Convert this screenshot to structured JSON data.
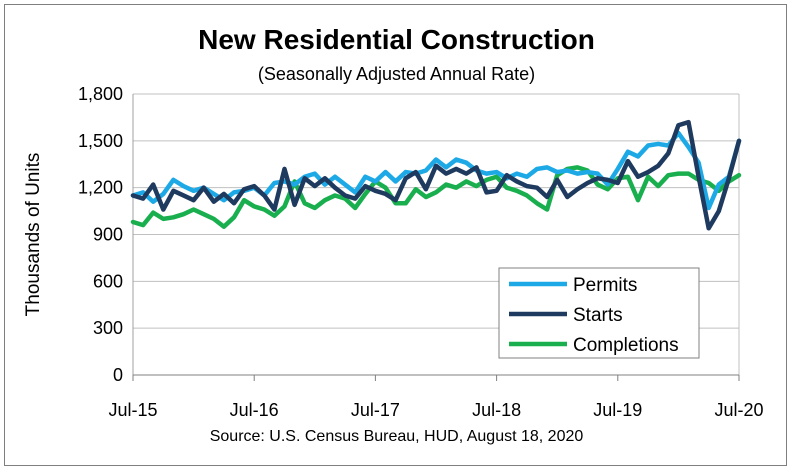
{
  "chart_data": {
    "type": "line",
    "title": "New Residential Construction",
    "subtitle": "(Seasonally Adjusted Annual Rate)",
    "ylabel": "Thousands of Units",
    "xlabel": "",
    "source": "Source:  U.S. Census Bureau, HUD, August 18, 2020",
    "ylim": [
      0,
      1800
    ],
    "yticks": [
      0,
      300,
      600,
      900,
      1200,
      1500,
      1800
    ],
    "ytick_labels": [
      "0",
      "300",
      "600",
      "900",
      "1,200",
      "1,500",
      "1,800"
    ],
    "grid": true,
    "legend_position": "bottom-right",
    "x_tick_labels": [
      "Jul-15",
      "Jul-16",
      "Jul-17",
      "Jul-18",
      "Jul-19",
      "Jul-20"
    ],
    "x_tick_indices": [
      0,
      12,
      24,
      36,
      48,
      60
    ],
    "categories": [
      "Jul-15",
      "Aug-15",
      "Sep-15",
      "Oct-15",
      "Nov-15",
      "Dec-15",
      "Jan-16",
      "Feb-16",
      "Mar-16",
      "Apr-16",
      "May-16",
      "Jun-16",
      "Jul-16",
      "Aug-16",
      "Sep-16",
      "Oct-16",
      "Nov-16",
      "Dec-16",
      "Jan-17",
      "Feb-17",
      "Mar-17",
      "Apr-17",
      "May-17",
      "Jun-17",
      "Jul-17",
      "Aug-17",
      "Sep-17",
      "Oct-17",
      "Nov-17",
      "Dec-17",
      "Jan-18",
      "Feb-18",
      "Mar-18",
      "Apr-18",
      "May-18",
      "Jun-18",
      "Jul-18",
      "Aug-18",
      "Sep-18",
      "Oct-18",
      "Nov-18",
      "Dec-18",
      "Jan-19",
      "Feb-19",
      "Mar-19",
      "Apr-19",
      "May-19",
      "Jun-19",
      "Jul-19",
      "Aug-19",
      "Sep-19",
      "Oct-19",
      "Nov-19",
      "Dec-19",
      "Jan-20",
      "Feb-20",
      "Mar-20",
      "Apr-20",
      "May-20",
      "Jun-20",
      "Jul-20"
    ],
    "series": [
      {
        "name": "Permits",
        "color": "#1CA9E6",
        "values": [
          1150,
          1170,
          1110,
          1160,
          1250,
          1210,
          1180,
          1200,
          1160,
          1120,
          1170,
          1180,
          1200,
          1150,
          1230,
          1240,
          1220,
          1270,
          1290,
          1220,
          1270,
          1220,
          1170,
          1270,
          1240,
          1300,
          1240,
          1300,
          1290,
          1310,
          1380,
          1330,
          1380,
          1360,
          1310,
          1290,
          1300,
          1260,
          1290,
          1270,
          1320,
          1330,
          1300,
          1310,
          1290,
          1300,
          1290,
          1220,
          1320,
          1430,
          1400,
          1470,
          1480,
          1470,
          1550,
          1460,
          1360,
          1070,
          1220,
          1270,
          1500
        ]
      },
      {
        "name": "Starts",
        "color": "#1F3A5F",
        "values": [
          1150,
          1130,
          1220,
          1060,
          1180,
          1150,
          1120,
          1200,
          1110,
          1160,
          1100,
          1190,
          1210,
          1150,
          1060,
          1320,
          1090,
          1260,
          1210,
          1260,
          1200,
          1150,
          1130,
          1210,
          1180,
          1160,
          1120,
          1260,
          1300,
          1190,
          1340,
          1290,
          1320,
          1290,
          1330,
          1170,
          1180,
          1280,
          1240,
          1210,
          1200,
          1140,
          1250,
          1140,
          1190,
          1230,
          1260,
          1250,
          1230,
          1370,
          1270,
          1300,
          1340,
          1420,
          1600,
          1620,
          1270,
          940,
          1050,
          1260,
          1500
        ]
      },
      {
        "name": "Completions",
        "color": "#19AF4F",
        "values": [
          980,
          960,
          1040,
          1000,
          1010,
          1030,
          1060,
          1030,
          1000,
          950,
          1010,
          1120,
          1080,
          1060,
          1020,
          1080,
          1240,
          1100,
          1070,
          1120,
          1150,
          1130,
          1070,
          1160,
          1240,
          1200,
          1100,
          1100,
          1190,
          1140,
          1170,
          1220,
          1200,
          1240,
          1210,
          1250,
          1270,
          1200,
          1180,
          1150,
          1100,
          1060,
          1280,
          1320,
          1330,
          1310,
          1220,
          1190,
          1260,
          1270,
          1120,
          1270,
          1210,
          1280,
          1290,
          1290,
          1250,
          1230,
          1180,
          1240,
          1280
        ]
      }
    ]
  }
}
